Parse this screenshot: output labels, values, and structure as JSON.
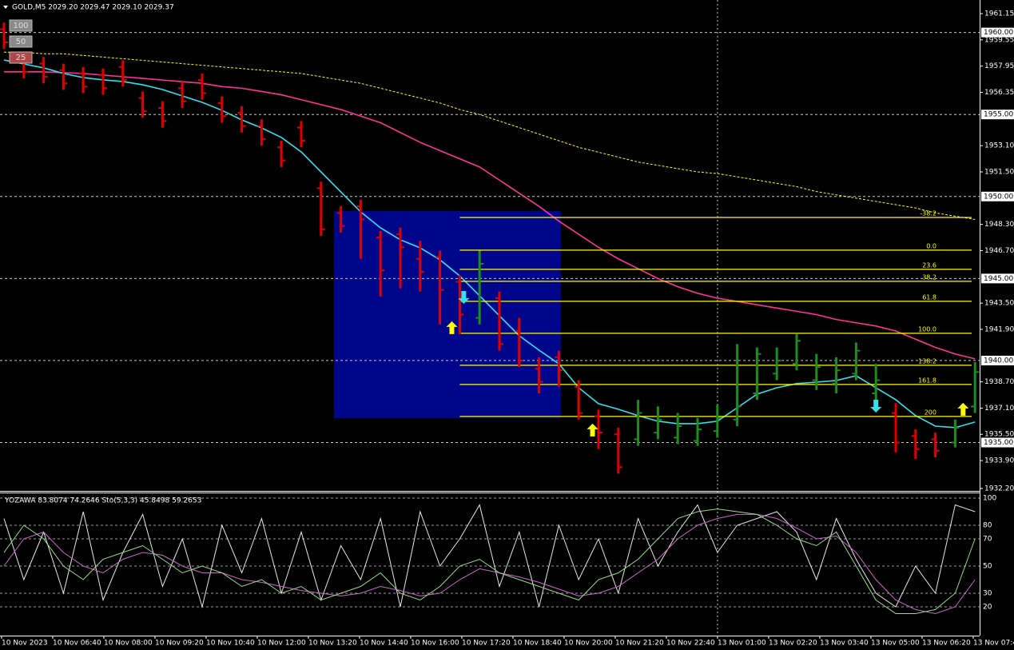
{
  "chart_data": {
    "type": "ohlc",
    "title": "GOLD,M5  2029.20 2029.47 2029.10 2029.37",
    "buttons": [
      "100",
      "50",
      "25"
    ],
    "open": [
      1960.2,
      1958.4,
      1958.1,
      1957.7,
      1957.5,
      1957.4,
      1957.9,
      1956.0,
      1955.4,
      1956.6,
      1957.1,
      1955.7,
      1955.1,
      1954.3,
      1953.0,
      1954.2,
      1950.5,
      1949.0,
      1949.4,
      1947.5,
      1947.7,
      1946.2,
      1946.3,
      1944.8,
      1942.6,
      1943.8,
      1941.8,
      1939.5,
      1940.2,
      1938.4,
      1936.6,
      1935.5,
      1935.2,
      1935.6,
      1935.3,
      1935.1,
      1935.7,
      1936.4,
      1938.0,
      1939.2,
      1939.8,
      1938.8,
      1938.6,
      1939.2,
      1938.0,
      1936.8,
      1935.4,
      1935.2,
      1935.0,
      1937.2
    ],
    "high": [
      1960.6,
      1958.8,
      1958.5,
      1958.1,
      1957.9,
      1957.8,
      1958.3,
      1956.4,
      1955.8,
      1957.0,
      1957.5,
      1956.1,
      1955.5,
      1954.7,
      1953.4,
      1954.6,
      1950.9,
      1949.4,
      1949.8,
      1947.9,
      1948.1,
      1947.3,
      1946.7,
      1945.2,
      1946.7,
      1944.2,
      1942.6,
      1940.2,
      1940.6,
      1938.8,
      1937.0,
      1935.9,
      1937.6,
      1937.2,
      1936.8,
      1936.5,
      1937.3,
      1941.0,
      1940.8,
      1940.8,
      1941.6,
      1940.4,
      1940.2,
      1941.1,
      1939.8,
      1937.4,
      1935.8,
      1935.6,
      1936.4,
      1939.9
    ],
    "low": [
      1959.0,
      1957.2,
      1956.9,
      1956.5,
      1956.3,
      1956.2,
      1956.7,
      1954.8,
      1954.2,
      1955.4,
      1955.9,
      1954.5,
      1953.9,
      1953.1,
      1951.8,
      1953.0,
      1947.6,
      1947.8,
      1946.2,
      1943.9,
      1944.4,
      1944.2,
      1942.2,
      1941.6,
      1942.2,
      1940.6,
      1939.6,
      1938.0,
      1938.4,
      1936.4,
      1934.6,
      1933.1,
      1934.8,
      1935.2,
      1934.9,
      1934.8,
      1935.3,
      1936.0,
      1937.6,
      1938.8,
      1939.4,
      1938.2,
      1938.0,
      1938.8,
      1937.6,
      1934.4,
      1934.0,
      1934.1,
      1934.7,
      1936.8
    ],
    "close": [
      1959.4,
      1957.6,
      1957.3,
      1956.9,
      1956.7,
      1956.6,
      1957.1,
      1955.2,
      1954.6,
      1955.8,
      1956.3,
      1954.9,
      1954.3,
      1953.5,
      1952.2,
      1953.4,
      1948.0,
      1948.2,
      1948.6,
      1945.5,
      1946.9,
      1945.4,
      1944.3,
      1942.8,
      1945.9,
      1941.0,
      1940.0,
      1938.7,
      1939.4,
      1936.8,
      1935.6,
      1933.5,
      1936.8,
      1936.4,
      1936.0,
      1935.8,
      1936.5,
      1937.2,
      1940.4,
      1940.0,
      1941.2,
      1939.6,
      1939.4,
      1940.6,
      1938.8,
      1935.0,
      1934.6,
      1934.5,
      1935.9,
      1939.3
    ],
    "up_color": "#1e8c1e",
    "down_color": "#e00000",
    "ylim": [
      1932.1,
      1961.98
    ],
    "yticks": [
      1961.15,
      1959.55,
      1957.95,
      1956.35,
      {
        "value": 1953.1,
        "label": "1953.10"
      },
      {
        "value": 1951.5,
        "label": "1951.50"
      },
      {
        "value": 1948.3,
        "label": "1948.30"
      },
      {
        "value": 1946.7,
        "label": "1946.70"
      },
      {
        "value": 1943.5,
        "label": "1943.50"
      },
      {
        "value": 1941.9,
        "label": "1941.90"
      },
      {
        "value": 1938.7,
        "label": "1938.70"
      },
      {
        "value": 1937.1,
        "label": "1937.10"
      },
      {
        "value": 1935.5,
        "label": "1935.50"
      },
      {
        "value": 1933.9,
        "label": "1933.90"
      },
      {
        "value": 1932.2,
        "label": "1932.20"
      }
    ],
    "levels": [
      {
        "value": 1960,
        "label": "1960.00"
      },
      {
        "value": 1955,
        "label": "1955.00"
      },
      {
        "value": 1950,
        "label": "1950.00"
      },
      {
        "value": 1945,
        "label": "1945.00"
      },
      {
        "value": 1940,
        "label": "1940.00"
      },
      {
        "value": 1935,
        "label": "1935.00"
      }
    ],
    "ma": [
      {
        "color": "#ffff00",
        "dashed": true,
        "values": [
          1958.8,
          1958.8,
          1958.7,
          1958.7,
          1958.6,
          1958.5,
          1958.4,
          1958.3,
          1958.2,
          1958.1,
          1958.0,
          1957.9,
          1957.8,
          1957.7,
          1957.6,
          1957.5,
          1957.3,
          1957.1,
          1956.9,
          1956.6,
          1956.3,
          1956.0,
          1955.7,
          1955.3,
          1955.0,
          1954.6,
          1954.2,
          1953.8,
          1953.4,
          1953.0,
          1952.7,
          1952.4,
          1952.1,
          1951.9,
          1951.7,
          1951.5,
          1951.4,
          1951.2,
          1951.0,
          1950.8,
          1950.6,
          1950.3,
          1950.1,
          1949.9,
          1949.7,
          1949.5,
          1949.3,
          1949.0,
          1948.8,
          1948.6
        ]
      },
      {
        "color": "#ff3399",
        "dashed": false,
        "values": [
          1957.6,
          1957.6,
          1957.6,
          1957.55,
          1957.5,
          1957.4,
          1957.3,
          1957.2,
          1957.1,
          1957.0,
          1956.9,
          1956.7,
          1956.6,
          1956.4,
          1956.2,
          1955.9,
          1955.6,
          1955.3,
          1954.9,
          1954.5,
          1953.9,
          1953.3,
          1952.8,
          1952.3,
          1951.8,
          1951.0,
          1950.2,
          1949.4,
          1948.5,
          1947.7,
          1946.9,
          1946.2,
          1945.6,
          1945.0,
          1944.5,
          1944.1,
          1943.8,
          1943.6,
          1943.4,
          1943.2,
          1943.0,
          1942.8,
          1942.5,
          1942.3,
          1942.1,
          1941.8,
          1941.3,
          1940.8,
          1940.4,
          1940.1
        ]
      },
      {
        "color": "#33e0f0",
        "dashed": false,
        "values": [
          1958.32,
          1958.08,
          1957.84,
          1957.5,
          1957.25,
          1957.11,
          1957.01,
          1956.81,
          1956.52,
          1956.13,
          1955.74,
          1955.25,
          1954.67,
          1954.18,
          1953.6,
          1952.72,
          1951.5,
          1950.28,
          1949.06,
          1948.09,
          1947.36,
          1946.87,
          1946.14,
          1945.16,
          1943.95,
          1942.73,
          1941.51,
          1940.63,
          1939.8,
          1938.34,
          1937.37,
          1937.03,
          1936.64,
          1936.3,
          1936.15,
          1936.15,
          1936.3,
          1937.12,
          1937.95,
          1938.34,
          1938.59,
          1938.68,
          1938.78,
          1939.07,
          1938.34,
          1937.61,
          1936.64,
          1936.0,
          1935.91,
          1936.25
        ]
      }
    ],
    "rectangle": {
      "color": "#00068a",
      "x": [
        16.65,
        28.1
      ],
      "y": [
        1936.49,
        1949.11
      ]
    },
    "fibo": {
      "color": "#ffff00",
      "start": 23,
      "levels": [
        {
          "label": "-38.2",
          "price": 1948.72
        },
        {
          "label": "0.0",
          "price": 1946.73
        },
        {
          "label": "23.6",
          "price": 1945.56
        },
        {
          "label": "38.2",
          "price": 1944.83
        },
        {
          "label": "61.8",
          "price": 1943.61
        },
        {
          "label": "100.0",
          "price": 1941.66
        },
        {
          "label": "138.2",
          "price": 1939.71
        },
        {
          "label": "161.8",
          "price": 1938.54
        },
        {
          "label": "200",
          "price": 1936.59
        }
      ]
    },
    "arrows": [
      {
        "dir": "up",
        "color": "#ffff00",
        "x": 22.6,
        "price": 1942.0
      },
      {
        "dir": "down",
        "color": "#33e0f0",
        "x": 23.2,
        "price": 1943.85
      },
      {
        "dir": "up",
        "color": "#ffff00",
        "x": 29.7,
        "price": 1935.76
      },
      {
        "dir": "down",
        "color": "#33e0f0",
        "x": 44.0,
        "price": 1937.22
      },
      {
        "dir": "up",
        "color": "#ffff00",
        "x": 48.4,
        "price": 1937.03
      }
    ],
    "time_labels": [
      "10 Nov 2023",
      "10 Nov 06:40",
      "10 Nov 08:00",
      "10 Nov 09:20",
      "10 Nov 10:40",
      "10 Nov 12:00",
      "10 Nov 13:20",
      "10 Nov 14:40",
      "10 Nov 16:00",
      "10 Nov 17:20",
      "10 Nov 18:40",
      "10 Nov 20:00",
      "10 Nov 21:20",
      "10 Nov 22:40",
      "13 Nov 01:00",
      "13 Nov 02:20",
      "13 Nov 03:40",
      "13 Nov 05:00",
      "13 Nov 06:20",
      "13 Nov 07:4"
    ],
    "indicator": {
      "type": "line",
      "title": "YOZAWA 83.8074 74.2646 Sto(5,3,3) 45.8498 59.2653",
      "ylim": [
        0,
        100
      ],
      "yticks": [
        100,
        80,
        70,
        50,
        30,
        20
      ],
      "series": [
        {
          "color": "#e8e8e8",
          "values": [
            85,
            40,
            75,
            30,
            90,
            25,
            60,
            88,
            35,
            70,
            20,
            80,
            45,
            85,
            30,
            75,
            25,
            65,
            40,
            85,
            20,
            90,
            50,
            70,
            95,
            35,
            75,
            20,
            80,
            40,
            70,
            30,
            85,
            50,
            75,
            95,
            60,
            80,
            85,
            90,
            75,
            40,
            85,
            55,
            30,
            20,
            50,
            30,
            95,
            90
          ]
        },
        {
          "color": "#cc66cc",
          "values": [
            50,
            70,
            75,
            60,
            50,
            45,
            55,
            60,
            58,
            50,
            45,
            45,
            40,
            38,
            35,
            32,
            30,
            28,
            30,
            35,
            32,
            28,
            30,
            40,
            48,
            45,
            42,
            38,
            33,
            28,
            30,
            35,
            45,
            55,
            70,
            80,
            85,
            88,
            88,
            85,
            78,
            70,
            72,
            60,
            40,
            25,
            18,
            15,
            20,
            40
          ]
        },
        {
          "color": "#99dd88",
          "values": [
            60,
            80,
            70,
            50,
            40,
            55,
            60,
            65,
            55,
            45,
            50,
            45,
            35,
            40,
            30,
            35,
            25,
            30,
            35,
            45,
            30,
            25,
            35,
            50,
            55,
            45,
            40,
            35,
            30,
            25,
            40,
            45,
            55,
            70,
            85,
            90,
            92,
            90,
            88,
            80,
            70,
            65,
            75,
            50,
            25,
            15,
            15,
            18,
            30,
            70
          ]
        }
      ]
    }
  }
}
